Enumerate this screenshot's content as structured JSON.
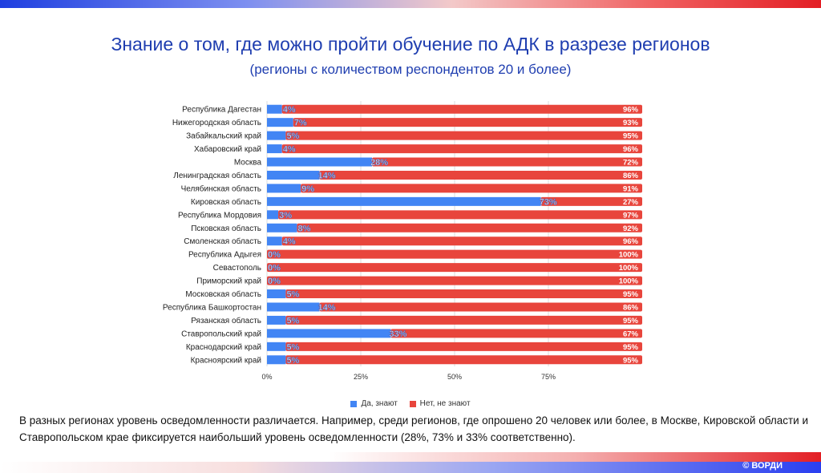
{
  "title": "Знание о том, где можно пройти обучение по АДК в разрезе регионов",
  "subtitle": "(регионы с количеством респондентов 20 и более)",
  "note": "В разных регионах уровень осведомленности различается. Например, среди регионов, где опрошено 20 человек или более, в Москве, Кировской области и Ставропольском крае фиксируется наибольший уровень осведомленности (28%, 73% и 33% соответственно).",
  "copyright": "© ВОРДИ",
  "colors": {
    "yes": "#4285f4",
    "no": "#e8453c",
    "title": "#1f3eb0"
  },
  "chart_data": {
    "type": "bar",
    "orientation": "horizontal",
    "stacked": true,
    "categories": [
      "Республика Дагестан",
      "Нижегородская область",
      "Забайкальский край",
      "Хабаровский край",
      "Москва",
      "Ленинградская область",
      "Челябинская область",
      "Кировская область",
      "Республика Мордовия",
      "Псковская область",
      "Смоленская область",
      "Республика Адыгея",
      "Севастополь",
      "Приморский край",
      "Московская область",
      "Республика Башкортостан",
      "Рязанская область",
      "Ставропольский край",
      "Краснодарский край",
      "Красноярский край"
    ],
    "series": [
      {
        "name": "Да, знают",
        "values": [
          4,
          7,
          5,
          4,
          28,
          14,
          9,
          73,
          3,
          8,
          4,
          0,
          0,
          0,
          5,
          14,
          5,
          33,
          5,
          5
        ]
      },
      {
        "name": "Нет, не знают",
        "values": [
          96,
          93,
          95,
          96,
          72,
          86,
          91,
          27,
          97,
          92,
          96,
          100,
          100,
          100,
          95,
          86,
          95,
          67,
          95,
          95
        ]
      }
    ],
    "xlim": [
      0,
      100
    ],
    "xticks": [
      "0%",
      "25%",
      "50%",
      "75%"
    ],
    "xtick_values": [
      0,
      25,
      50,
      75
    ],
    "grid": true,
    "legend_position": "bottom"
  }
}
